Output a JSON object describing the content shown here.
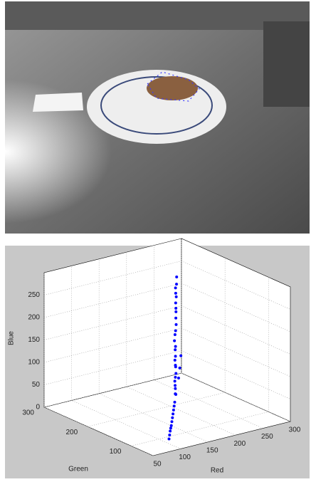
{
  "chart_data": {
    "type": "scatter3d",
    "xlabel": "Red",
    "ylabel": "Green",
    "zlabel": "Blue",
    "xlim": [
      50,
      300
    ],
    "xticks": [
      50,
      100,
      150,
      200,
      250,
      300
    ],
    "ylim": [
      50,
      300
    ],
    "yticks": [
      100,
      200,
      300
    ],
    "zlim": [
      0,
      300
    ],
    "zticks": [
      0,
      50,
      100,
      150,
      200,
      250
    ],
    "grid": true,
    "color": "#0000ff",
    "x": [
      250,
      245,
      240,
      238,
      235,
      230,
      228,
      225,
      220,
      215,
      210,
      205,
      200,
      198,
      195,
      190,
      185,
      180,
      178,
      175,
      170,
      165,
      160,
      158,
      155,
      150,
      145,
      140,
      135,
      130,
      125,
      120,
      115,
      110,
      105,
      100,
      95,
      180,
      170,
      160
    ],
    "y": [
      248,
      242,
      238,
      235,
      230,
      225,
      222,
      218,
      212,
      205,
      200,
      195,
      190,
      185,
      182,
      175,
      170,
      162,
      160,
      155,
      150,
      145,
      138,
      135,
      130,
      125,
      120,
      115,
      110,
      105,
      100,
      95,
      90,
      85,
      80,
      75,
      70,
      150,
      140,
      130
    ],
    "z": [
      252,
      240,
      235,
      225,
      220,
      210,
      200,
      195,
      185,
      175,
      165,
      160,
      150,
      140,
      135,
      125,
      120,
      110,
      115,
      100,
      95,
      90,
      85,
      80,
      70,
      75,
      60,
      55,
      50,
      45,
      40,
      35,
      30,
      28,
      25,
      20,
      15,
      140,
      120,
      105
    ]
  }
}
